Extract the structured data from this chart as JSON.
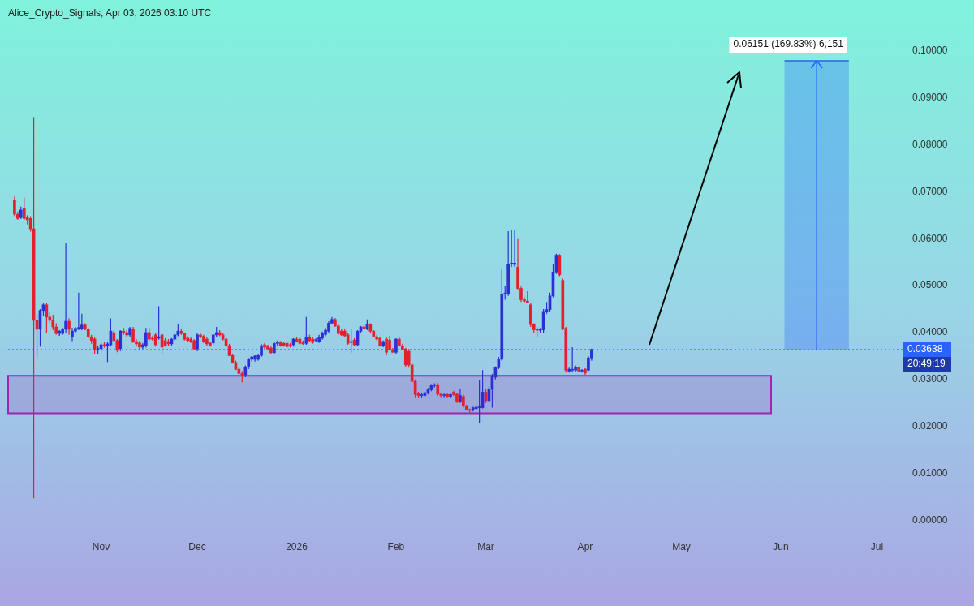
{
  "chart_data": {
    "type": "candlestick",
    "title": "Alice_Crypto_Signals, Apr 03, 2026 03:10 UTC",
    "xlim": [
      "2025-10-03",
      "2026-07-09"
    ],
    "xticks": [
      {
        "value": "2025-11-01",
        "label": "Nov"
      },
      {
        "value": "2025-12-01",
        "label": "Dec"
      },
      {
        "value": "2026-01-01",
        "label": "2026"
      },
      {
        "value": "2026-02-01",
        "label": "Feb"
      },
      {
        "value": "2026-03-01",
        "label": "Mar"
      },
      {
        "value": "2026-04-01",
        "label": "Apr"
      },
      {
        "value": "2026-05-01",
        "label": "May"
      },
      {
        "value": "2026-06-01",
        "label": "Jun"
      },
      {
        "value": "2026-07-01",
        "label": "Jul"
      }
    ],
    "ylim": [
      -0.004,
      0.106
    ],
    "yticks": [
      {
        "value": 0,
        "label": "0.00000"
      },
      {
        "value": 0.01,
        "label": "0.01000"
      },
      {
        "value": 0.02,
        "label": "0.02000"
      },
      {
        "value": 0.03,
        "label": "0.03000"
      },
      {
        "value": 0.04,
        "label": "0.04000"
      },
      {
        "value": 0.05,
        "label": "0.05000"
      },
      {
        "value": 0.06,
        "label": "0.06000"
      },
      {
        "value": 0.07,
        "label": "0.07000"
      },
      {
        "value": 0.08,
        "label": "0.08000"
      },
      {
        "value": 0.09,
        "label": "0.09000"
      },
      {
        "value": 0.1,
        "label": "0.10000"
      }
    ],
    "series": [
      {
        "color": "#2b2fd6",
        "x": [
          "2025-10-07",
          "2025-10-13",
          "2025-10-14",
          "2025-10-19",
          "2025-10-20",
          "2025-10-21",
          "2025-10-23",
          "2025-10-24",
          "2025-10-25",
          "2025-10-26",
          "2025-10-31",
          "2025-11-01",
          "2025-11-03",
          "2025-11-04",
          "2025-11-07",
          "2025-11-10",
          "2025-11-14",
          "2025-11-15",
          "2025-11-19",
          "2025-11-23",
          "2025-11-24",
          "2025-11-25",
          "2025-12-01",
          "2025-12-06",
          "2025-12-07",
          "2025-12-16",
          "2025-12-17",
          "2025-12-18",
          "2025-12-19",
          "2025-12-20",
          "2025-12-21",
          "2025-12-25",
          "2025-12-26",
          "2025-12-31",
          "2026-01-04",
          "2026-01-07",
          "2026-01-08",
          "2026-01-09",
          "2026-01-10",
          "2026-01-11",
          "2026-01-12",
          "2026-01-18",
          "2026-01-20",
          "2026-01-21",
          "2026-01-23",
          "2026-01-28",
          "2026-02-01",
          "2026-02-09",
          "2026-02-10",
          "2026-02-11",
          "2026-02-12",
          "2026-02-13",
          "2026-02-16",
          "2026-02-18",
          "2026-02-21",
          "2026-02-25",
          "2026-02-26",
          "2026-02-27",
          "2026-02-28",
          "2026-03-02",
          "2026-03-03",
          "2026-03-04",
          "2026-03-05",
          "2026-03-06",
          "2026-03-07",
          "2026-03-08",
          "2026-03-09",
          "2026-03-10",
          "2026-03-18",
          "2026-03-19",
          "2026-03-20",
          "2026-03-21",
          "2026-03-22",
          "2026-03-23",
          "2026-03-27",
          "2026-03-28",
          "2026-03-29",
          "2026-03-31",
          "2026-04-02",
          "2026-04-03"
        ],
        "ohlc": [
          [
            0.0645,
            0.0668,
            0.0642,
            0.0661
          ],
          [
            0.0407,
            0.045,
            0.037,
            0.0447
          ],
          [
            0.0447,
            0.0462,
            0.0435,
            0.0459
          ],
          [
            0.0398,
            0.0405,
            0.0393,
            0.0403
          ],
          [
            0.0398,
            0.041,
            0.0395,
            0.0407
          ],
          [
            0.0407,
            0.059,
            0.04,
            0.0424
          ],
          [
            0.0391,
            0.041,
            0.0382,
            0.0403
          ],
          [
            0.0403,
            0.0412,
            0.0398,
            0.0409
          ],
          [
            0.0409,
            0.0485,
            0.0405,
            0.041
          ],
          [
            0.0409,
            0.044,
            0.0405,
            0.0416
          ],
          [
            0.0363,
            0.0372,
            0.0355,
            0.0366
          ],
          [
            0.0366,
            0.0378,
            0.036,
            0.0374
          ],
          [
            0.0372,
            0.038,
            0.0337,
            0.0376
          ],
          [
            0.0374,
            0.043,
            0.037,
            0.0403
          ],
          [
            0.0366,
            0.0405,
            0.036,
            0.0403
          ],
          [
            0.0395,
            0.0412,
            0.039,
            0.0409
          ],
          [
            0.0369,
            0.0378,
            0.0365,
            0.0374
          ],
          [
            0.0372,
            0.041,
            0.0368,
            0.04
          ],
          [
            0.0388,
            0.0456,
            0.0385,
            0.0391
          ],
          [
            0.0376,
            0.0388,
            0.0372,
            0.0386
          ],
          [
            0.0386,
            0.0398,
            0.0383,
            0.0395
          ],
          [
            0.0395,
            0.0418,
            0.0392,
            0.0403
          ],
          [
            0.0365,
            0.04,
            0.036,
            0.0395
          ],
          [
            0.0378,
            0.0395,
            0.0375,
            0.0395
          ],
          [
            0.0395,
            0.0412,
            0.039,
            0.04
          ],
          [
            0.031,
            0.033,
            0.0305,
            0.0327
          ],
          [
            0.0327,
            0.0346,
            0.0322,
            0.0343
          ],
          [
            0.0343,
            0.035,
            0.0338,
            0.0348
          ],
          [
            0.0343,
            0.0352,
            0.0338,
            0.035
          ],
          [
            0.0343,
            0.0355,
            0.034,
            0.0351
          ],
          [
            0.0351,
            0.0376,
            0.0348,
            0.0372
          ],
          [
            0.0357,
            0.0379,
            0.0355,
            0.0377
          ],
          [
            0.0377,
            0.0383,
            0.0372,
            0.0379
          ],
          [
            0.0374,
            0.0388,
            0.037,
            0.0386
          ],
          [
            0.0377,
            0.0433,
            0.0374,
            0.039
          ],
          [
            0.0383,
            0.0388,
            0.0379,
            0.0384
          ],
          [
            0.0381,
            0.0395,
            0.0378,
            0.039
          ],
          [
            0.0388,
            0.0402,
            0.0385,
            0.0398
          ],
          [
            0.0396,
            0.041,
            0.0392,
            0.0405
          ],
          [
            0.0403,
            0.0424,
            0.04,
            0.042
          ],
          [
            0.042,
            0.0433,
            0.0417,
            0.0428
          ],
          [
            0.0379,
            0.0407,
            0.0357,
            0.0381
          ],
          [
            0.0374,
            0.0405,
            0.0372,
            0.0403
          ],
          [
            0.0403,
            0.0414,
            0.04,
            0.0412
          ],
          [
            0.0409,
            0.0428,
            0.0405,
            0.0417
          ],
          [
            0.0372,
            0.0383,
            0.0369,
            0.0381
          ],
          [
            0.0358,
            0.0388,
            0.0355,
            0.0386
          ],
          [
            0.0266,
            0.0272,
            0.0262,
            0.0267
          ],
          [
            0.0266,
            0.0275,
            0.0262,
            0.0272
          ],
          [
            0.0272,
            0.0282,
            0.0268,
            0.0278
          ],
          [
            0.0278,
            0.029,
            0.0275,
            0.0287
          ],
          [
            0.0287,
            0.0292,
            0.0283,
            0.0289
          ],
          [
            0.0266,
            0.027,
            0.0262,
            0.0267
          ],
          [
            0.0264,
            0.027,
            0.026,
            0.0268
          ],
          [
            0.0252,
            0.028,
            0.025,
            0.0266
          ],
          [
            0.0235,
            0.0242,
            0.0232,
            0.024
          ],
          [
            0.0238,
            0.0244,
            0.0235,
            0.0241
          ],
          [
            0.024,
            0.0299,
            0.0207,
            0.0242
          ],
          [
            0.024,
            0.032,
            0.0238,
            0.0273
          ],
          [
            0.0255,
            0.0285,
            0.025,
            0.0279
          ],
          [
            0.0279,
            0.0312,
            0.024,
            0.0308
          ],
          [
            0.0305,
            0.0328,
            0.03,
            0.0325
          ],
          [
            0.0325,
            0.0348,
            0.0322,
            0.0343
          ],
          [
            0.0343,
            0.0537,
            0.034,
            0.0482
          ],
          [
            0.0482,
            0.0499,
            0.047,
            0.0484
          ],
          [
            0.0482,
            0.0616,
            0.0478,
            0.0546
          ],
          [
            0.0546,
            0.0619,
            0.054,
            0.0548
          ],
          [
            0.0545,
            0.0619,
            0.054,
            0.0548
          ],
          [
            0.0405,
            0.041,
            0.0398,
            0.0406
          ],
          [
            0.0406,
            0.045,
            0.04,
            0.0445
          ],
          [
            0.0445,
            0.0465,
            0.044,
            0.0449
          ],
          [
            0.0449,
            0.0485,
            0.0445,
            0.0478
          ],
          [
            0.0478,
            0.0545,
            0.0475,
            0.0529
          ],
          [
            0.0529,
            0.0568,
            0.0525,
            0.0565
          ],
          [
            0.0318,
            0.0325,
            0.0315,
            0.0322
          ],
          [
            0.032,
            0.0369,
            0.0315,
            0.0321
          ],
          [
            0.032,
            0.033,
            0.0317,
            0.0325
          ],
          [
            0.0318,
            0.0322,
            0.0315,
            0.0319
          ],
          [
            0.032,
            0.035,
            0.0318,
            0.0346
          ],
          [
            0.0346,
            0.0366,
            0.034,
            0.0364
          ]
        ]
      },
      {
        "color": "#e3202e",
        "x": [
          "2025-10-05",
          "2025-10-06",
          "2025-10-08",
          "2025-10-09",
          "2025-10-10",
          "2025-10-11",
          "2025-10-12",
          "2025-10-15",
          "2025-10-16",
          "2025-10-17",
          "2025-10-18",
          "2025-10-22",
          "2025-10-27",
          "2025-10-28",
          "2025-10-29",
          "2025-10-30",
          "2025-11-02",
          "2025-11-05",
          "2025-11-06",
          "2025-11-08",
          "2025-11-09",
          "2025-11-11",
          "2025-11-12",
          "2025-11-13",
          "2025-11-16",
          "2025-11-17",
          "2025-11-18",
          "2025-11-20",
          "2025-11-21",
          "2025-11-22",
          "2025-11-26",
          "2025-11-27",
          "2025-11-28",
          "2025-11-29",
          "2025-11-30",
          "2025-12-02",
          "2025-12-03",
          "2025-12-04",
          "2025-12-05",
          "2025-12-08",
          "2025-12-09",
          "2025-12-10",
          "2025-12-11",
          "2025-12-12",
          "2025-12-13",
          "2025-12-14",
          "2025-12-15",
          "2025-12-22",
          "2025-12-23",
          "2025-12-24",
          "2025-12-27",
          "2025-12-28",
          "2025-12-29",
          "2025-12-30",
          "2026-01-01",
          "2026-01-02",
          "2026-01-03",
          "2026-01-05",
          "2026-01-06",
          "2026-01-13",
          "2026-01-14",
          "2026-01-15",
          "2026-01-16",
          "2026-01-17",
          "2026-01-19",
          "2026-01-22",
          "2026-01-24",
          "2026-01-25",
          "2026-01-26",
          "2026-01-27",
          "2026-01-29",
          "2026-01-30",
          "2026-01-31",
          "2026-02-02",
          "2026-02-03",
          "2026-02-04",
          "2026-02-05",
          "2026-02-06",
          "2026-02-07",
          "2026-02-08",
          "2026-02-14",
          "2026-02-15",
          "2026-02-17",
          "2026-02-19",
          "2026-02-20",
          "2026-02-22",
          "2026-02-23",
          "2026-02-24",
          "2026-03-01",
          "2026-03-11",
          "2026-03-12",
          "2026-03-13",
          "2026-03-14",
          "2026-03-15",
          "2026-03-16",
          "2026-03-17",
          "2026-03-24",
          "2026-03-25",
          "2026-03-26",
          "2026-03-30",
          "2026-04-01"
        ],
        "ohlc": [
          [
            0.0682,
            0.069,
            0.0648,
            0.0652
          ],
          [
            0.0652,
            0.0658,
            0.064,
            0.0643
          ],
          [
            0.0664,
            0.0687,
            0.064,
            0.0643
          ],
          [
            0.0645,
            0.065,
            0.063,
            0.064
          ],
          [
            0.0643,
            0.0648,
            0.0615,
            0.0621
          ],
          [
            0.0621,
            0.0859,
            0.0047,
            0.0426
          ],
          [
            0.0426,
            0.044,
            0.0348,
            0.0407
          ],
          [
            0.0459,
            0.0462,
            0.04,
            0.0433
          ],
          [
            0.0433,
            0.0445,
            0.042,
            0.0426
          ],
          [
            0.0426,
            0.0438,
            0.0405,
            0.0412
          ],
          [
            0.0412,
            0.042,
            0.0395,
            0.0398
          ],
          [
            0.0424,
            0.043,
            0.0395,
            0.0407
          ],
          [
            0.0416,
            0.042,
            0.0405,
            0.0407
          ],
          [
            0.0407,
            0.041,
            0.0388,
            0.0391
          ],
          [
            0.0391,
            0.0395,
            0.0376,
            0.0383
          ],
          [
            0.0386,
            0.039,
            0.0355,
            0.0363
          ],
          [
            0.0374,
            0.038,
            0.0368,
            0.0372
          ],
          [
            0.04,
            0.0405,
            0.038,
            0.0383
          ],
          [
            0.0383,
            0.0386,
            0.0358,
            0.0363
          ],
          [
            0.0403,
            0.041,
            0.0395,
            0.04
          ],
          [
            0.04,
            0.0405,
            0.039,
            0.0395
          ],
          [
            0.0407,
            0.0412,
            0.0378,
            0.0381
          ],
          [
            0.0381,
            0.0386,
            0.037,
            0.0376
          ],
          [
            0.0378,
            0.0382,
            0.0365,
            0.0369
          ],
          [
            0.04,
            0.041,
            0.0383,
            0.0386
          ],
          [
            0.0388,
            0.0392,
            0.0383,
            0.0386
          ],
          [
            0.0395,
            0.0398,
            0.037,
            0.0374
          ],
          [
            0.0395,
            0.0398,
            0.0355,
            0.0369
          ],
          [
            0.0383,
            0.0388,
            0.037,
            0.0372
          ],
          [
            0.0381,
            0.0386,
            0.0372,
            0.0376
          ],
          [
            0.0403,
            0.0407,
            0.0395,
            0.0398
          ],
          [
            0.0398,
            0.04,
            0.0383,
            0.0386
          ],
          [
            0.0388,
            0.0392,
            0.038,
            0.0383
          ],
          [
            0.0386,
            0.039,
            0.0378,
            0.0381
          ],
          [
            0.0383,
            0.0386,
            0.0362,
            0.0365
          ],
          [
            0.0395,
            0.04,
            0.0388,
            0.039
          ],
          [
            0.0392,
            0.0395,
            0.0378,
            0.0381
          ],
          [
            0.0386,
            0.039,
            0.0372,
            0.0376
          ],
          [
            0.0378,
            0.0381,
            0.037,
            0.0372
          ],
          [
            0.04,
            0.0405,
            0.0392,
            0.0395
          ],
          [
            0.0395,
            0.0398,
            0.0383,
            0.0386
          ],
          [
            0.0386,
            0.039,
            0.0369,
            0.0372
          ],
          [
            0.0372,
            0.0376,
            0.035,
            0.0351
          ],
          [
            0.0351,
            0.0355,
            0.0334,
            0.0336
          ],
          [
            0.0336,
            0.034,
            0.032,
            0.0322
          ],
          [
            0.0322,
            0.0326,
            0.031,
            0.0313
          ],
          [
            0.0313,
            0.0318,
            0.0294,
            0.031
          ],
          [
            0.0374,
            0.0378,
            0.0365,
            0.0369
          ],
          [
            0.0371,
            0.0374,
            0.0362,
            0.0365
          ],
          [
            0.0367,
            0.037,
            0.0355,
            0.0357
          ],
          [
            0.0379,
            0.0382,
            0.037,
            0.0372
          ],
          [
            0.0377,
            0.038,
            0.037,
            0.0372
          ],
          [
            0.0377,
            0.038,
            0.0368,
            0.037
          ],
          [
            0.0374,
            0.0378,
            0.0368,
            0.0372
          ],
          [
            0.0386,
            0.039,
            0.0379,
            0.0381
          ],
          [
            0.0386,
            0.039,
            0.0374,
            0.0377
          ],
          [
            0.0379,
            0.0383,
            0.0374,
            0.0376
          ],
          [
            0.039,
            0.0395,
            0.0381,
            0.0383
          ],
          [
            0.0386,
            0.039,
            0.0376,
            0.0379
          ],
          [
            0.0428,
            0.0431,
            0.0412,
            0.0414
          ],
          [
            0.0414,
            0.0417,
            0.0395,
            0.0398
          ],
          [
            0.0403,
            0.0407,
            0.0393,
            0.0395
          ],
          [
            0.0403,
            0.0407,
            0.039,
            0.0393
          ],
          [
            0.0395,
            0.0398,
            0.0374,
            0.0377
          ],
          [
            0.0384,
            0.0388,
            0.0372,
            0.0374
          ],
          [
            0.0412,
            0.0416,
            0.0407,
            0.0409
          ],
          [
            0.0417,
            0.042,
            0.04,
            0.0403
          ],
          [
            0.0403,
            0.0405,
            0.039,
            0.0391
          ],
          [
            0.0391,
            0.0395,
            0.0383,
            0.0386
          ],
          [
            0.0388,
            0.039,
            0.037,
            0.0372
          ],
          [
            0.0386,
            0.039,
            0.0351,
            0.0358
          ],
          [
            0.0384,
            0.0393,
            0.0362,
            0.0364
          ],
          [
            0.0364,
            0.0367,
            0.0357,
            0.0358
          ],
          [
            0.0386,
            0.039,
            0.0372,
            0.0372
          ],
          [
            0.0372,
            0.0376,
            0.0362,
            0.0364
          ],
          [
            0.0365,
            0.0367,
            0.0327,
            0.0331
          ],
          [
            0.036,
            0.0365,
            0.0325,
            0.0331
          ],
          [
            0.0331,
            0.0334,
            0.0294,
            0.0296
          ],
          [
            0.0296,
            0.03,
            0.0262,
            0.0268
          ],
          [
            0.027,
            0.0274,
            0.0262,
            0.0266
          ],
          [
            0.0289,
            0.0292,
            0.0266,
            0.0269
          ],
          [
            0.0269,
            0.0272,
            0.0262,
            0.0266
          ],
          [
            0.0268,
            0.0272,
            0.0262,
            0.0264
          ],
          [
            0.0273,
            0.0276,
            0.0265,
            0.0268
          ],
          [
            0.0269,
            0.0272,
            0.025,
            0.0252
          ],
          [
            0.0264,
            0.0268,
            0.024,
            0.0244
          ],
          [
            0.0243,
            0.0246,
            0.0234,
            0.0236
          ],
          [
            0.0236,
            0.0238,
            0.0228,
            0.0236
          ],
          [
            0.0273,
            0.028,
            0.025,
            0.0255
          ],
          [
            0.0539,
            0.0601,
            0.0492,
            0.0494
          ],
          [
            0.0494,
            0.0498,
            0.0465,
            0.047
          ],
          [
            0.047,
            0.0475,
            0.0462,
            0.0467
          ],
          [
            0.0467,
            0.0488,
            0.0462,
            0.0464
          ],
          [
            0.0459,
            0.0462,
            0.0412,
            0.0417
          ],
          [
            0.0417,
            0.042,
            0.04,
            0.0406
          ],
          [
            0.0406,
            0.0412,
            0.0391,
            0.0405
          ],
          [
            0.0565,
            0.0567,
            0.052,
            0.0523
          ],
          [
            0.0511,
            0.0515,
            0.0405,
            0.0409
          ],
          [
            0.0409,
            0.0412,
            0.0315,
            0.032
          ],
          [
            0.0325,
            0.0328,
            0.0316,
            0.0318
          ],
          [
            0.0322,
            0.0324,
            0.031,
            0.0314
          ]
        ]
      }
    ],
    "bands": [
      {
        "axis": "y",
        "from": 0.0228,
        "to": 0.0308,
        "color": "#9c27b0"
      },
      {
        "axis": "y",
        "from": 0.03638,
        "to": 0.09789,
        "label": "0.06151 (169.83%) 6,151",
        "color": "#2962ff"
      }
    ],
    "ref_lines": [
      {
        "axis": "y",
        "value": 0.03638,
        "label": "0.03638",
        "color": "#2962ff",
        "line_style": "dotted"
      }
    ],
    "annotations": [
      "20:49:19"
    ]
  }
}
